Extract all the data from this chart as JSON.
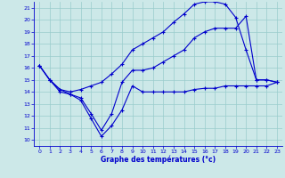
{
  "xlabel": "Graphe des températures (°c)",
  "xlim": [
    -0.5,
    23.5
  ],
  "ylim": [
    9.5,
    21.5
  ],
  "yticks": [
    10,
    11,
    12,
    13,
    14,
    15,
    16,
    17,
    18,
    19,
    20,
    21
  ],
  "xticks": [
    0,
    1,
    2,
    3,
    4,
    5,
    6,
    7,
    8,
    9,
    10,
    11,
    12,
    13,
    14,
    15,
    16,
    17,
    18,
    19,
    20,
    21,
    22,
    23
  ],
  "bg_color": "#cce8e8",
  "line_color": "#0000cc",
  "grid_color": "#99cccc",
  "line1_y": [
    16.2,
    15.0,
    14.0,
    13.8,
    13.3,
    11.8,
    10.3,
    11.2,
    12.5,
    14.5,
    14.0,
    14.0,
    14.0,
    14.0,
    14.0,
    14.2,
    14.3,
    14.3,
    14.5,
    14.5,
    14.5,
    14.5,
    14.5,
    14.8
  ],
  "line2_y": [
    16.2,
    15.0,
    14.2,
    14.0,
    14.2,
    14.5,
    14.8,
    15.5,
    16.3,
    17.5,
    18.0,
    18.5,
    19.0,
    19.8,
    20.5,
    21.3,
    21.5,
    21.5,
    21.3,
    20.2,
    17.5,
    15.0,
    15.0,
    14.8
  ],
  "line3_y": [
    16.2,
    15.0,
    14.2,
    13.8,
    13.5,
    12.2,
    10.8,
    12.2,
    14.8,
    15.8,
    15.8,
    16.0,
    16.5,
    17.0,
    17.5,
    18.5,
    19.0,
    19.3,
    19.3,
    19.3,
    20.3,
    15.0,
    15.0,
    14.8
  ]
}
